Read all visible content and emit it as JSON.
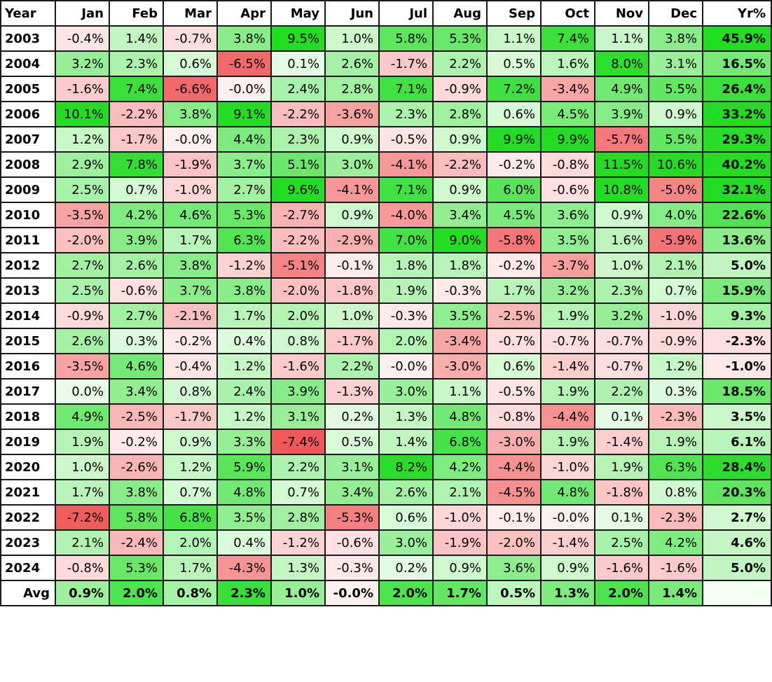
{
  "table": {
    "headers": [
      "Year",
      "Jan",
      "Feb",
      "Mar",
      "Apr",
      "May",
      "Jun",
      "Jul",
      "Aug",
      "Sep",
      "Oct",
      "Nov",
      "Dec",
      "Yr%"
    ],
    "rows": [
      {
        "year": "2003",
        "cells": [
          "-0.4%",
          "1.4%",
          "-0.7%",
          "3.8%",
          "9.5%",
          "1.0%",
          "5.8%",
          "5.3%",
          "1.1%",
          "7.4%",
          "1.1%",
          "3.8%"
        ],
        "yr": "45.9%"
      },
      {
        "year": "2004",
        "cells": [
          "3.2%",
          "2.3%",
          "0.6%",
          "-6.5%",
          "0.1%",
          "2.6%",
          "-1.7%",
          "2.2%",
          "0.5%",
          "1.6%",
          "8.0%",
          "3.1%"
        ],
        "yr": "16.5%"
      },
      {
        "year": "2005",
        "cells": [
          "-1.6%",
          "7.4%",
          "-6.6%",
          "-0.0%",
          "2.4%",
          "2.8%",
          "7.1%",
          "-0.9%",
          "7.2%",
          "-3.4%",
          "4.9%",
          "5.5%"
        ],
        "yr": "26.4%"
      },
      {
        "year": "2006",
        "cells": [
          "10.1%",
          "-2.2%",
          "3.8%",
          "9.1%",
          "-2.2%",
          "-3.6%",
          "2.3%",
          "2.8%",
          "0.6%",
          "4.5%",
          "3.9%",
          "0.9%"
        ],
        "yr": "33.2%"
      },
      {
        "year": "2007",
        "cells": [
          "1.2%",
          "-1.7%",
          "-0.0%",
          "4.4%",
          "2.3%",
          "0.9%",
          "-0.5%",
          "0.9%",
          "9.9%",
          "9.9%",
          "-5.7%",
          "5.5%"
        ],
        "yr": "29.3%"
      },
      {
        "year": "2008",
        "cells": [
          "2.9%",
          "7.8%",
          "-1.9%",
          "3.7%",
          "5.1%",
          "3.0%",
          "-4.1%",
          "-2.2%",
          "-0.2%",
          "-0.8%",
          "11.5%",
          "10.6%"
        ],
        "yr": "40.2%"
      },
      {
        "year": "2009",
        "cells": [
          "2.5%",
          "0.7%",
          "-1.0%",
          "2.7%",
          "9.6%",
          "-4.1%",
          "7.1%",
          "0.9%",
          "6.0%",
          "-0.6%",
          "10.8%",
          "-5.0%"
        ],
        "yr": "32.1%"
      },
      {
        "year": "2010",
        "cells": [
          "-3.5%",
          "4.2%",
          "4.6%",
          "5.3%",
          "-2.7%",
          "0.9%",
          "-4.0%",
          "3.4%",
          "4.5%",
          "3.6%",
          "0.9%",
          "4.0%"
        ],
        "yr": "22.6%"
      },
      {
        "year": "2011",
        "cells": [
          "-2.0%",
          "3.9%",
          "1.7%",
          "6.3%",
          "-2.2%",
          "-2.9%",
          "7.0%",
          "9.0%",
          "-5.8%",
          "3.5%",
          "1.6%",
          "-5.9%"
        ],
        "yr": "13.6%"
      },
      {
        "year": "2012",
        "cells": [
          "2.7%",
          "2.6%",
          "3.8%",
          "-1.2%",
          "-5.1%",
          "-0.1%",
          "1.8%",
          "1.8%",
          "-0.2%",
          "-3.7%",
          "1.0%",
          "2.1%"
        ],
        "yr": "5.0%"
      },
      {
        "year": "2013",
        "cells": [
          "2.5%",
          "-0.6%",
          "3.7%",
          "3.8%",
          "-2.0%",
          "-1.8%",
          "1.9%",
          "-0.3%",
          "1.7%",
          "3.2%",
          "2.3%",
          "0.7%"
        ],
        "yr": "15.9%"
      },
      {
        "year": "2014",
        "cells": [
          "-0.9%",
          "2.7%",
          "-2.1%",
          "1.7%",
          "2.0%",
          "1.0%",
          "-0.3%",
          "3.5%",
          "-2.5%",
          "1.9%",
          "3.2%",
          "-1.0%"
        ],
        "yr": "9.3%"
      },
      {
        "year": "2015",
        "cells": [
          "2.6%",
          "0.3%",
          "-0.2%",
          "0.4%",
          "0.8%",
          "-1.7%",
          "2.0%",
          "-3.4%",
          "-0.7%",
          "-0.7%",
          "-0.7%",
          "-0.9%"
        ],
        "yr": "-2.3%"
      },
      {
        "year": "2016",
        "cells": [
          "-3.5%",
          "4.6%",
          "-0.4%",
          "1.2%",
          "-1.6%",
          "2.2%",
          "-0.0%",
          "-3.0%",
          "0.6%",
          "-1.4%",
          "-0.7%",
          "1.2%"
        ],
        "yr": "-1.0%"
      },
      {
        "year": "2017",
        "cells": [
          "0.0%",
          "3.4%",
          "0.8%",
          "2.4%",
          "3.9%",
          "-1.3%",
          "3.0%",
          "1.1%",
          "-0.5%",
          "1.9%",
          "2.2%",
          "0.3%"
        ],
        "yr": "18.5%"
      },
      {
        "year": "2018",
        "cells": [
          "4.9%",
          "-2.5%",
          "-1.7%",
          "1.2%",
          "3.1%",
          "0.2%",
          "1.3%",
          "4.8%",
          "-0.8%",
          "-4.4%",
          "0.1%",
          "-2.3%"
        ],
        "yr": "3.5%"
      },
      {
        "year": "2019",
        "cells": [
          "1.9%",
          "-0.2%",
          "0.9%",
          "3.3%",
          "-7.4%",
          "0.5%",
          "1.4%",
          "6.8%",
          "-3.0%",
          "1.9%",
          "-1.4%",
          "1.9%"
        ],
        "yr": "6.1%"
      },
      {
        "year": "2020",
        "cells": [
          "1.0%",
          "-2.6%",
          "1.2%",
          "5.9%",
          "2.2%",
          "3.1%",
          "8.2%",
          "4.2%",
          "-4.4%",
          "-1.0%",
          "1.9%",
          "6.3%"
        ],
        "yr": "28.4%"
      },
      {
        "year": "2021",
        "cells": [
          "1.7%",
          "3.8%",
          "0.7%",
          "4.8%",
          "0.7%",
          "3.4%",
          "2.6%",
          "2.1%",
          "-4.5%",
          "4.8%",
          "-1.8%",
          "0.8%"
        ],
        "yr": "20.3%"
      },
      {
        "year": "2022",
        "cells": [
          "-7.2%",
          "5.8%",
          "6.8%",
          "3.5%",
          "2.8%",
          "-5.3%",
          "0.6%",
          "-1.0%",
          "-0.1%",
          "-0.0%",
          "0.1%",
          "-2.3%"
        ],
        "yr": "2.7%"
      },
      {
        "year": "2023",
        "cells": [
          "2.1%",
          "-2.4%",
          "2.0%",
          "0.4%",
          "-1.2%",
          "-0.6%",
          "3.0%",
          "-1.9%",
          "-2.0%",
          "-1.4%",
          "2.5%",
          "4.2%"
        ],
        "yr": "4.6%"
      },
      {
        "year": "2024",
        "cells": [
          "-0.8%",
          "5.3%",
          "1.7%",
          "-4.3%",
          "1.3%",
          "-0.3%",
          "0.2%",
          "0.9%",
          "3.6%",
          "0.9%",
          "-1.6%",
          "-1.6%"
        ],
        "yr": "5.0%"
      }
    ],
    "avg_row": {
      "label": "Avg",
      "cells": [
        "0.9%",
        "2.0%",
        "0.8%",
        "2.3%",
        "1.0%",
        "-0.0%",
        "2.0%",
        "1.7%",
        "0.5%",
        "1.3%",
        "2.0%",
        "1.4%"
      ],
      "yr": ""
    }
  },
  "colors": {
    "pos_strong": "#22dd22",
    "pos_light": "#e8fce8",
    "neg_strong": "#ef4444",
    "neg_light": "#fff0f0",
    "empty_cell": "#f2fff2",
    "border": "#1a1a1a"
  }
}
